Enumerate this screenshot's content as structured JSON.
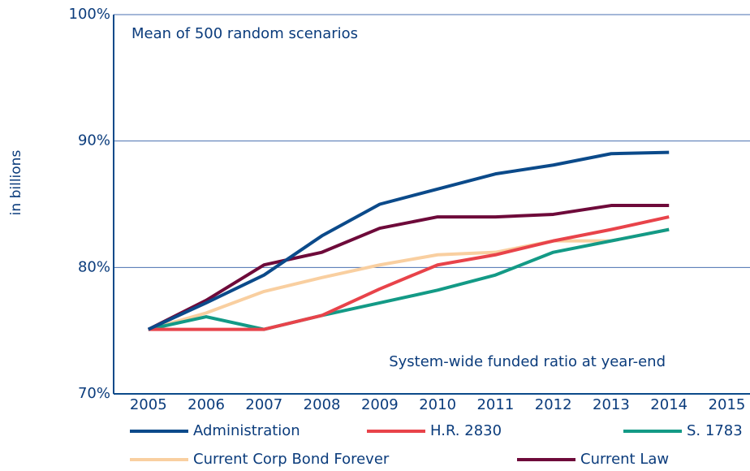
{
  "chart_data": {
    "type": "line",
    "annotations": [
      "Mean of 500 random scenarios",
      "System-wide funded ratio at year-end"
    ],
    "y_label": "in billions",
    "x": [
      2005,
      2006,
      2007,
      2008,
      2009,
      2010,
      2011,
      2012,
      2013,
      2014
    ],
    "series": [
      {
        "name": "Administration",
        "color": "#0b4a8a",
        "values": [
          75.1,
          77.2,
          79.4,
          82.5,
          85.0,
          86.2,
          87.4,
          88.1,
          89.0,
          89.1
        ]
      },
      {
        "name": "H.R. 2830",
        "color": "#e8434a",
        "values": [
          75.1,
          75.1,
          75.1,
          76.2,
          78.3,
          80.2,
          81.0,
          82.1,
          83.0,
          84.0
        ]
      },
      {
        "name": "S. 1783",
        "color": "#139a86",
        "values": [
          75.1,
          76.1,
          75.1,
          76.2,
          77.2,
          78.2,
          79.4,
          81.2,
          82.1,
          83.0
        ]
      },
      {
        "name": "Current Corp Bond Forever",
        "color": "#f9cfa0",
        "values": [
          75.1,
          76.4,
          78.1,
          79.2,
          80.2,
          81.0,
          81.2,
          82.1,
          82.1,
          83.0
        ]
      },
      {
        "name": "Current Law",
        "color": "#6e0a3a",
        "values": [
          75.1,
          77.4,
          80.2,
          81.2,
          83.1,
          84.0,
          84.0,
          84.2,
          84.9,
          84.9
        ]
      }
    ],
    "xlim": [
      2004.4,
      2015.4
    ],
    "xticks": [
      2005,
      2006,
      2007,
      2008,
      2009,
      2010,
      2011,
      2012,
      2013,
      2014,
      2015
    ],
    "ylim": [
      70,
      100
    ],
    "yticks": [
      {
        "value": 70,
        "label": "70%"
      },
      {
        "value": 80,
        "label": "80%"
      },
      {
        "value": 90,
        "label": "90%"
      },
      {
        "value": 100,
        "label": "100%"
      }
    ],
    "grid": true
  }
}
